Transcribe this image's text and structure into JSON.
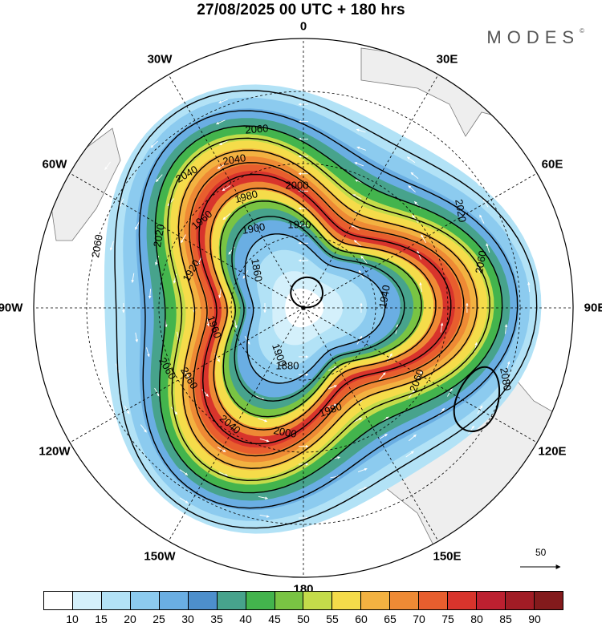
{
  "header": {
    "title": "27/08/2025  00 UTC  + 180 hrs",
    "brand": "MODES",
    "brand_mark": "©"
  },
  "longitude_labels": [
    "0",
    "30E",
    "60E",
    "90E",
    "120E",
    "150E",
    "180",
    "150W",
    "120W",
    "90W",
    "60W",
    "30W"
  ],
  "contour_labels": [
    "2060",
    "2040",
    "2040",
    "2000",
    "1980",
    "1920",
    "1900",
    "1960",
    "2020",
    "2060",
    "1920",
    "1860",
    "1880",
    "1900",
    "1960",
    "1940",
    "2020",
    "2060",
    "1980",
    "2000",
    "2060",
    "2040",
    "2060",
    "2060",
    "2080"
  ],
  "wind_scale": {
    "value": "50"
  },
  "colorbar": {
    "labels": [
      "10",
      "15",
      "20",
      "25",
      "30",
      "35",
      "40",
      "45",
      "50",
      "55",
      "60",
      "65",
      "70",
      "75",
      "80",
      "85",
      "90"
    ],
    "colors": [
      "#ffffff",
      "#d4f0fb",
      "#b2e2f6",
      "#8ccbef",
      "#6aaee3",
      "#4d8fcc",
      "#47a38c",
      "#43b44d",
      "#79c443",
      "#c4dc4a",
      "#f5dc4a",
      "#f3b241",
      "#ee8a35",
      "#e85e2e",
      "#d8342c",
      "#bd2030",
      "#a11c25",
      "#831a1c"
    ]
  }
}
